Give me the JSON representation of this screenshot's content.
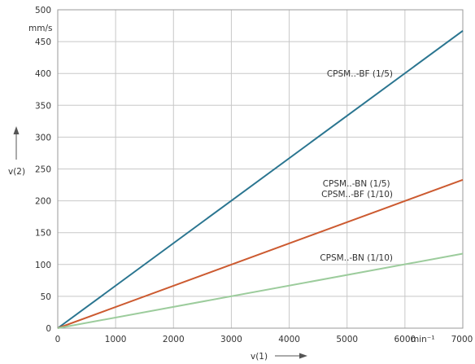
{
  "chart_data": {
    "type": "line",
    "title": "",
    "xlabel": "v(1)",
    "ylabel": "v(2)",
    "x_unit": "min⁻¹",
    "y_unit": "mm/s",
    "xlim": [
      0,
      7000
    ],
    "ylim": [
      0,
      500
    ],
    "x_ticks": [
      0,
      1000,
      2000,
      3000,
      4000,
      5000,
      6000,
      7000
    ],
    "y_ticks": [
      0,
      50,
      100,
      150,
      200,
      250,
      300,
      350,
      400,
      450,
      500
    ],
    "grid": true,
    "series": [
      {
        "label": "CPSM..-BF (1/5)",
        "color": "#2a7590",
        "x": [
          0,
          7000
        ],
        "y": [
          0,
          467
        ]
      },
      {
        "label": "CPSM..-BN (1/5)\nCPSM..-BF (1/10)",
        "color": "#cc5a30",
        "x": [
          0,
          7000
        ],
        "y": [
          0,
          233
        ]
      },
      {
        "label": "CPSM..-BN (1/10)",
        "color": "#9ccc9c",
        "x": [
          0,
          7000
        ],
        "y": [
          0,
          117
        ]
      }
    ]
  }
}
